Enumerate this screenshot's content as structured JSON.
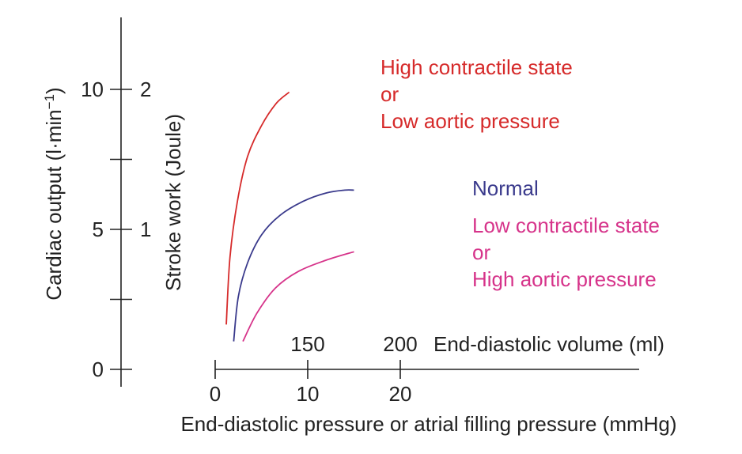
{
  "chart_data": {
    "type": "line",
    "axes": {
      "y_primary": {
        "label": "Cardiac output (l·min",
        "label_sup": "−1",
        "label_close": ")",
        "ylim": [
          0,
          12.5
        ],
        "ticks": [
          0,
          2.5,
          5,
          7.5,
          10
        ],
        "tick_labels": [
          {
            "value": 0,
            "text": "0"
          },
          {
            "value": 5,
            "text": "5"
          },
          {
            "value": 10,
            "text": "10"
          }
        ]
      },
      "y_secondary": {
        "label": "Stroke work (Joule)",
        "tick_labels": [
          {
            "value": 1,
            "text": "1"
          },
          {
            "value": 2,
            "text": "2"
          }
        ],
        "scale_per_primary_unit": 0.2
      },
      "x_primary": {
        "label": "End-diastolic pressure or atrial filling pressure (mmHg)",
        "xlim": [
          0,
          23
        ],
        "ticks": [
          0,
          10,
          20
        ],
        "tick_labels": [
          {
            "value": 0,
            "text": "0"
          },
          {
            "value": 10,
            "text": "10"
          },
          {
            "value": 20,
            "text": "20"
          }
        ],
        "axis_extends_to": 23
      },
      "x_secondary": {
        "label": "End-diastolic volume (ml)",
        "tick_labels": [
          {
            "value": 150,
            "text": "150",
            "pressure": 10
          },
          {
            "value": 200,
            "text": "200",
            "pressure": 20
          }
        ]
      }
    },
    "series": [
      {
        "name": "High contractile state",
        "name_lines": [
          "High contractile state",
          "or",
          "Low aortic pressure"
        ],
        "color": "#d62a2a",
        "x": [
          1.2,
          1.6,
          2.4,
          3.5,
          5.0,
          6.6,
          8.0
        ],
        "y": [
          1.6,
          4.0,
          6.0,
          7.6,
          8.7,
          9.5,
          9.9
        ]
      },
      {
        "name": "Normal",
        "name_lines": [
          "Normal"
        ],
        "color": "#3a3a8c",
        "x": [
          2.0,
          2.5,
          3.5,
          5.0,
          7.0,
          9.5,
          12.0,
          14.0,
          15.0
        ],
        "y": [
          1.0,
          2.6,
          3.8,
          4.8,
          5.5,
          6.0,
          6.3,
          6.4,
          6.4
        ]
      },
      {
        "name": "Low contractile state",
        "name_lines": [
          "Low contractile state",
          "or",
          "High aortic pressure"
        ],
        "color": "#d6338a",
        "x": [
          3.0,
          4.5,
          6.5,
          9.0,
          12.0,
          15.0
        ],
        "y": [
          1.0,
          2.0,
          2.9,
          3.5,
          3.9,
          4.2
        ]
      }
    ]
  }
}
